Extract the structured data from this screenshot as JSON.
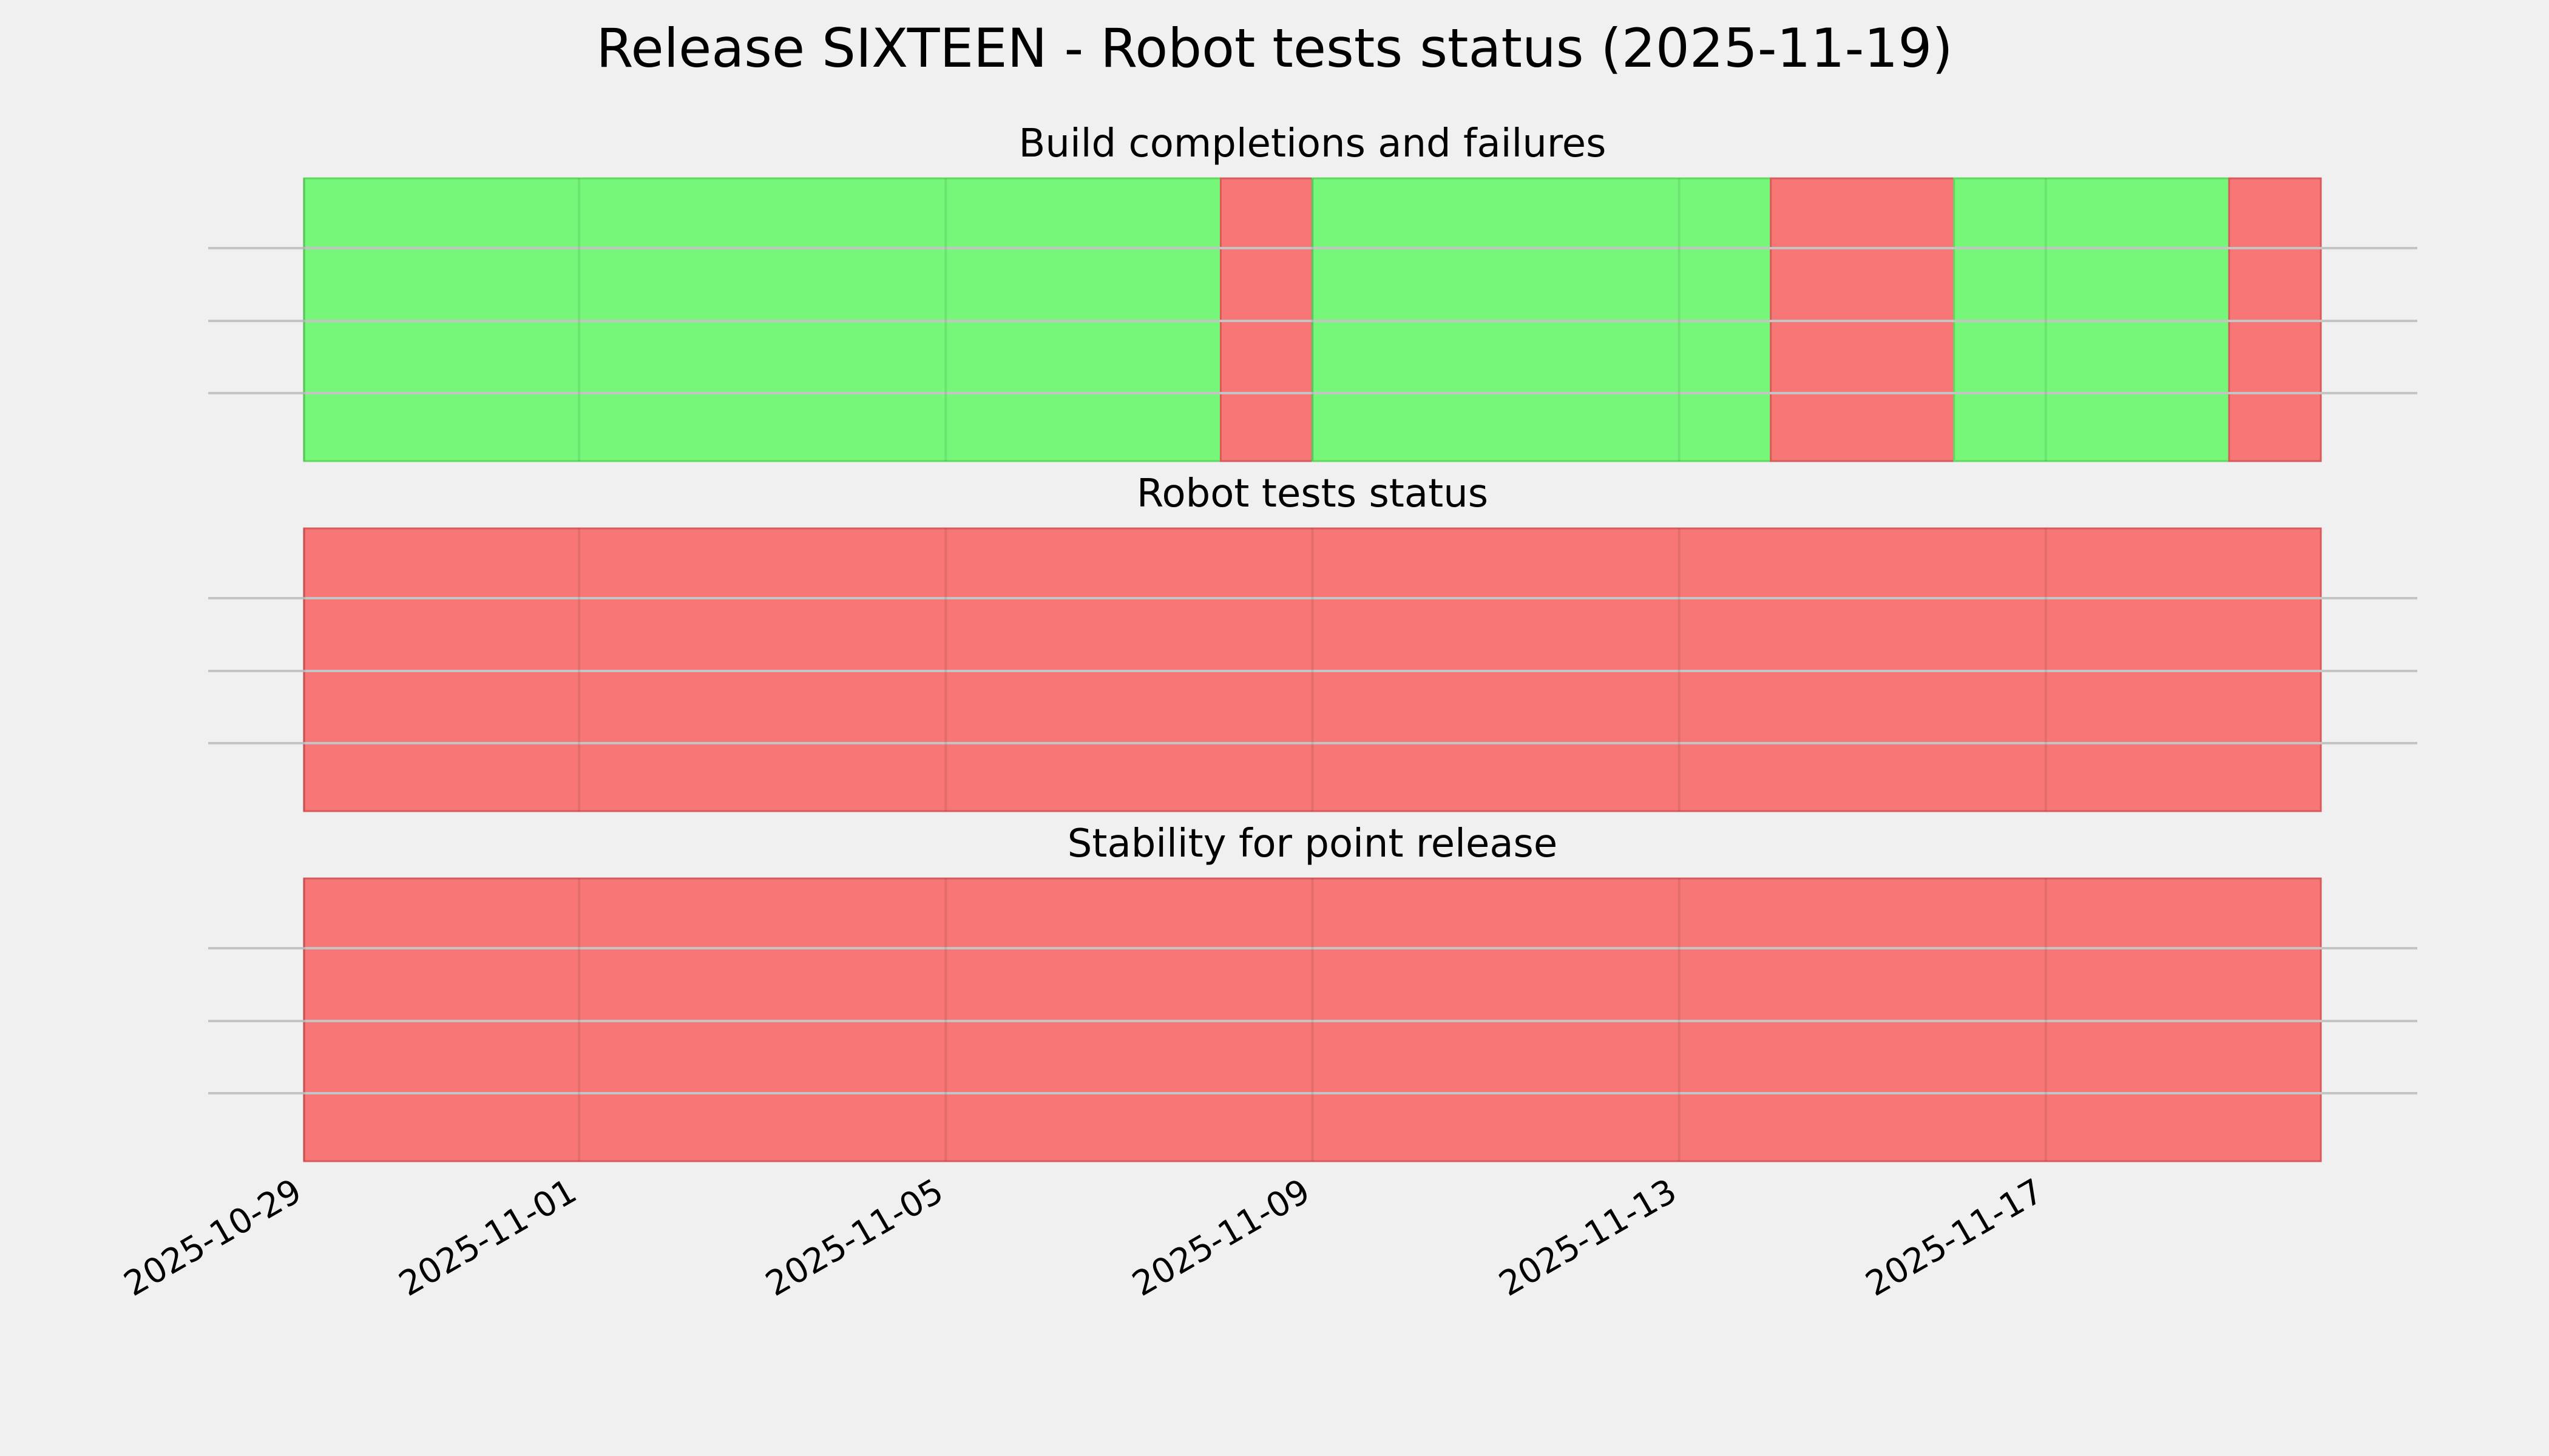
{
  "chart_data": {
    "type": "timeline",
    "title": "Release SIXTEEN - Robot tests status (2025-11-19)",
    "x_axis": {
      "type": "date",
      "range": [
        "2025-10-29",
        "2025-11-20"
      ],
      "ticks": [
        "2025-10-29",
        "2025-11-01",
        "2025-11-05",
        "2025-11-09",
        "2025-11-13",
        "2025-11-17"
      ]
    },
    "grid": true,
    "colors": {
      "pass": "#77f77a",
      "fail": "#f77777",
      "background": "#f0f0f0"
    },
    "panels": [
      {
        "title": "Build completions and failures",
        "segments": [
          {
            "start": "2025-10-29",
            "end": "2025-11-08",
            "status": "pass"
          },
          {
            "start": "2025-11-08",
            "end": "2025-11-09",
            "status": "fail"
          },
          {
            "start": "2025-11-09",
            "end": "2025-11-14",
            "status": "pass"
          },
          {
            "start": "2025-11-14",
            "end": "2025-11-16",
            "status": "fail"
          },
          {
            "start": "2025-11-16",
            "end": "2025-11-19",
            "status": "pass"
          },
          {
            "start": "2025-11-19",
            "end": "2025-11-20",
            "status": "fail"
          }
        ]
      },
      {
        "title": "Robot tests status",
        "segments": [
          {
            "start": "2025-10-29",
            "end": "2025-11-20",
            "status": "fail"
          }
        ]
      },
      {
        "title": "Stability for point release",
        "segments": [
          {
            "start": "2025-10-29",
            "end": "2025-11-20",
            "status": "fail"
          }
        ]
      }
    ]
  }
}
